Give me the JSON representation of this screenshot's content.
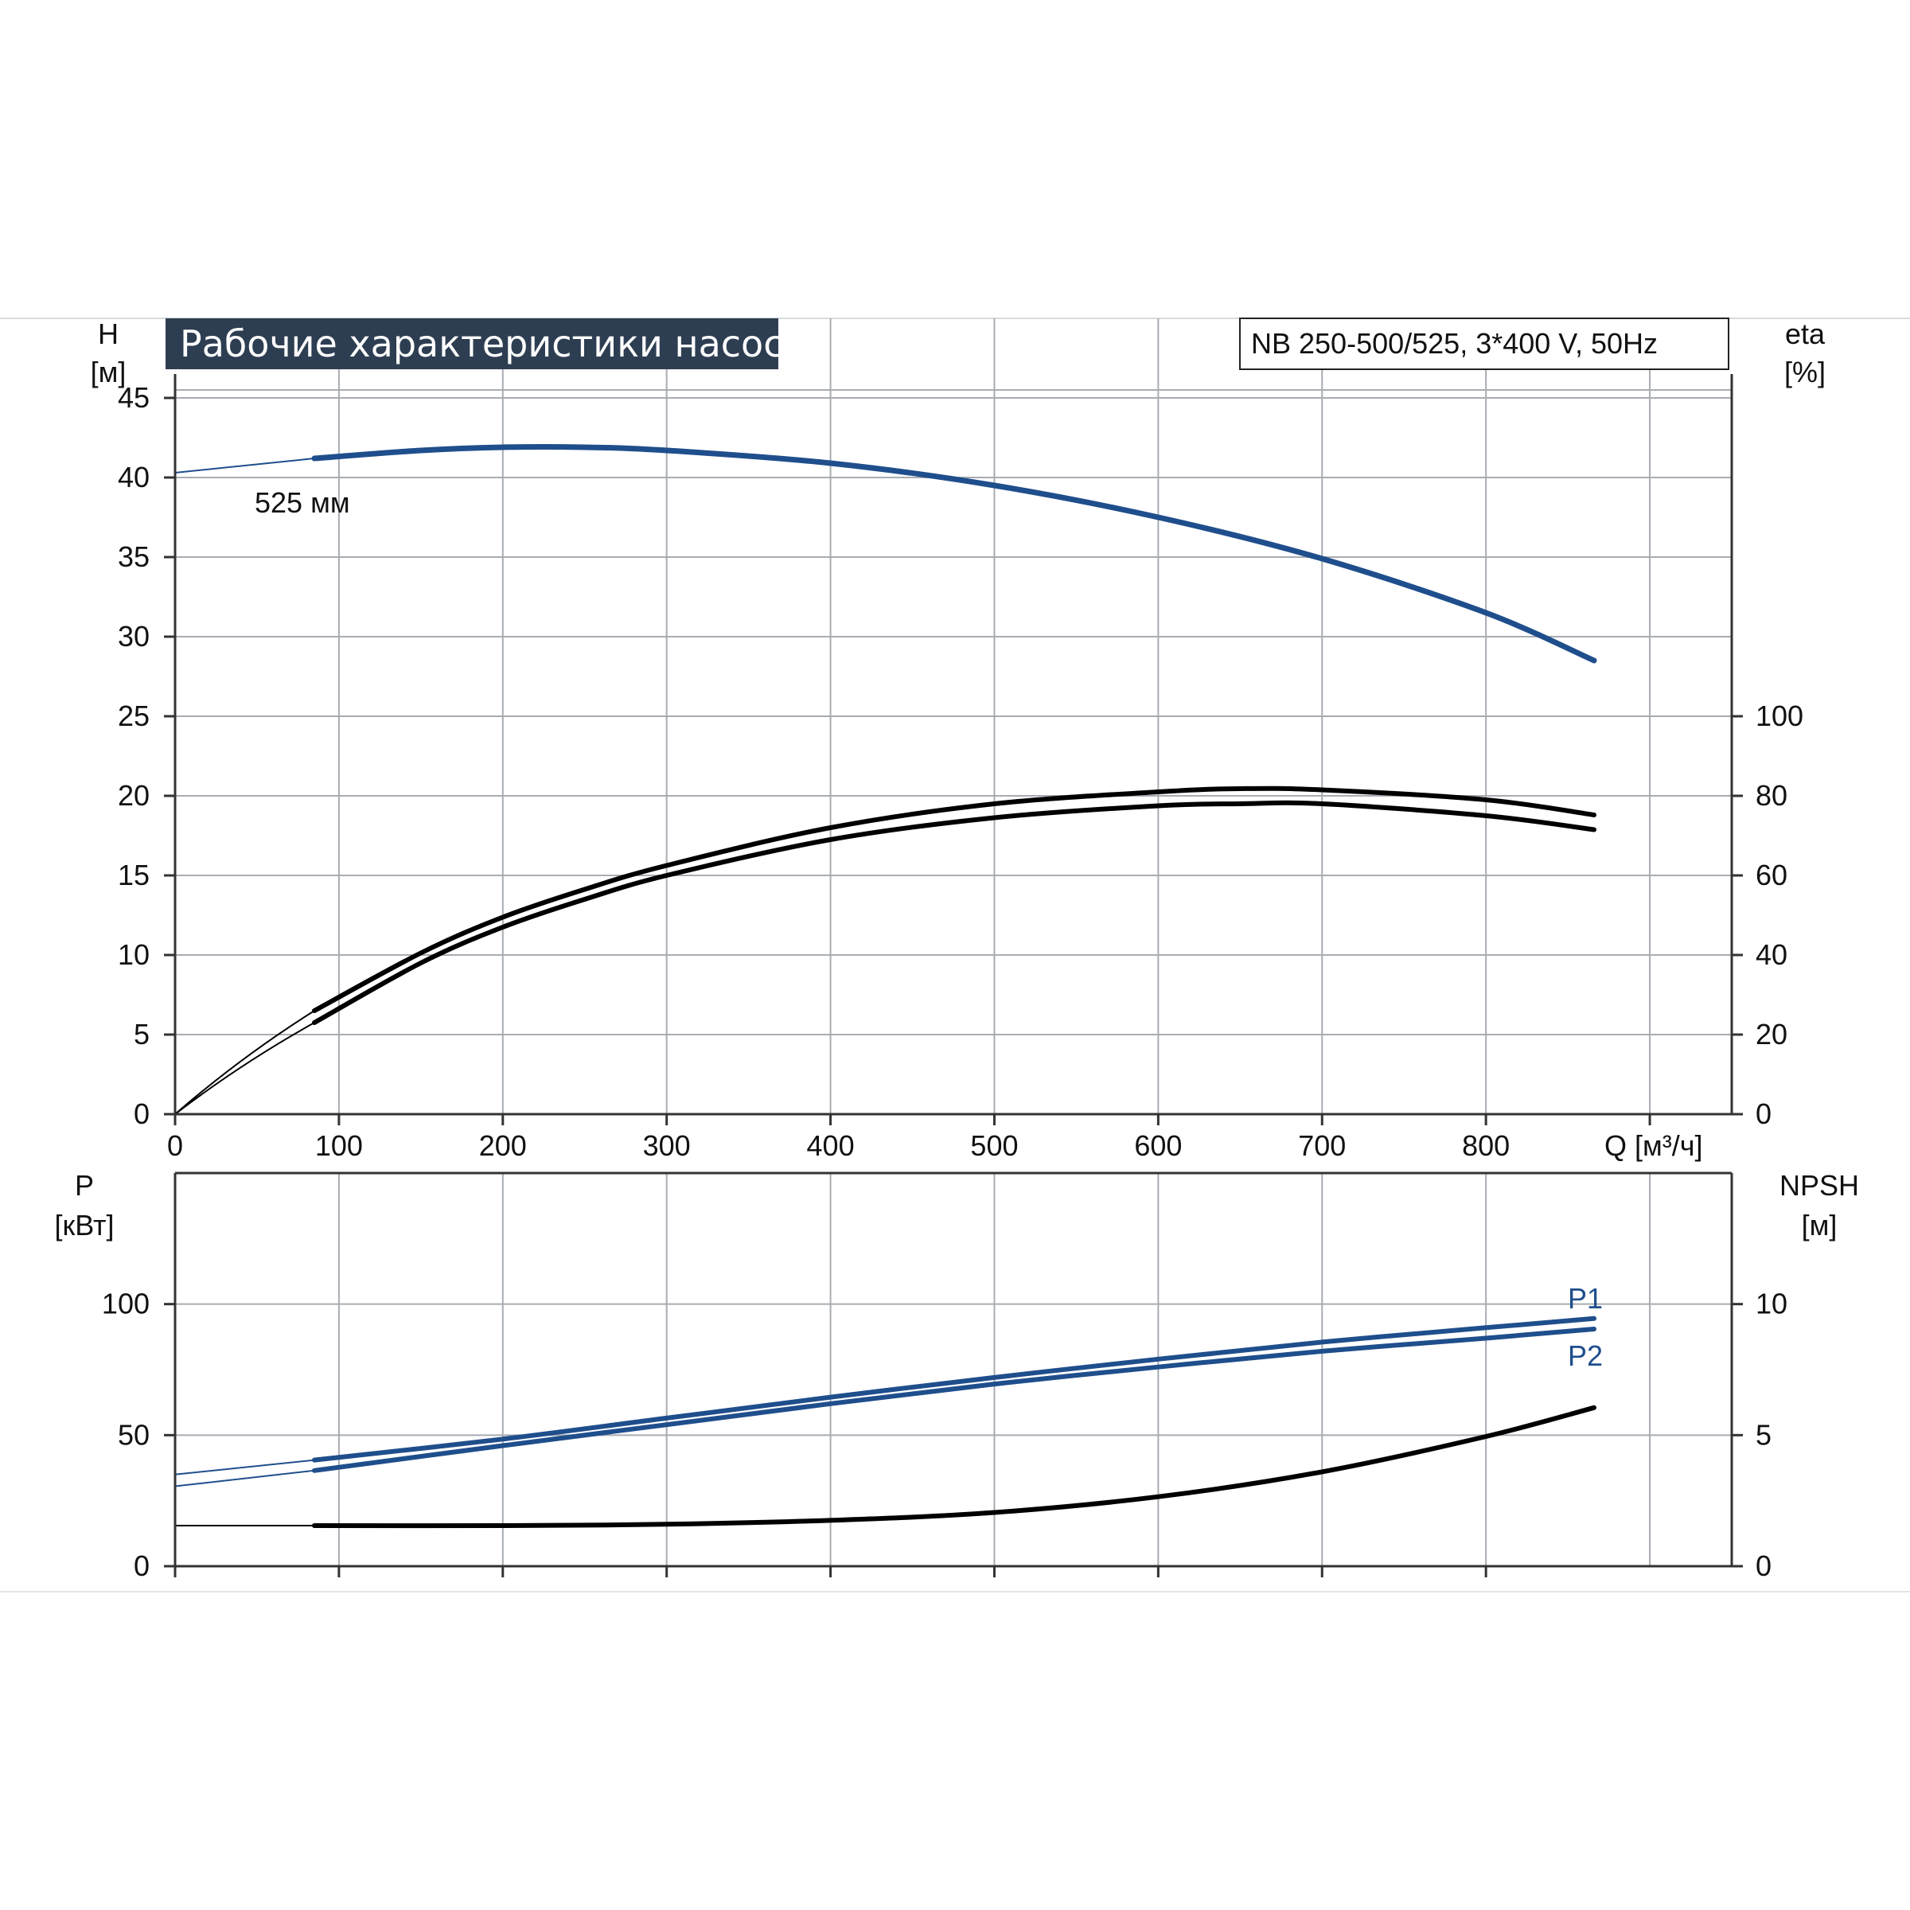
{
  "title": "Рабочие характеристики насоса",
  "model": "NB 250-500/525, 3*400 V, 50Hz",
  "colors": {
    "blue": "#1f4e8c",
    "black": "#000000",
    "grid": "#a8acb2",
    "title_bg": "#2e3e52"
  },
  "chart_data": [
    {
      "type": "line",
      "name": "head-efficiency",
      "x_unit_label": "Q [м³/ч]",
      "x_ticks": [
        0,
        100,
        200,
        300,
        400,
        500,
        600,
        700,
        800
      ],
      "xlim": [
        0,
        950
      ],
      "left_axis": {
        "label_top": "H",
        "label_unit": "[м]",
        "ylim": [
          0,
          50
        ],
        "ticks": [
          0,
          5,
          10,
          15,
          20,
          25,
          30,
          35,
          40,
          45
        ]
      },
      "right_axis": {
        "label_top": "eta",
        "label_unit": "[%]",
        "ylim": [
          0,
          200
        ],
        "ticks": [
          0,
          20,
          40,
          60,
          80,
          100
        ]
      },
      "series": [
        {
          "name": "525 мм",
          "axis": "left",
          "color": "blue",
          "x": [
            85,
            150,
            200,
            250,
            300,
            400,
            500,
            600,
            700,
            800,
            866
          ],
          "y": [
            41.2,
            41.7,
            41.9,
            41.9,
            41.7,
            40.9,
            39.5,
            37.5,
            34.9,
            31.5,
            28.5
          ]
        },
        {
          "name": "",
          "axis": "right",
          "color": "black",
          "x": [
            85,
            150,
            200,
            250,
            300,
            400,
            500,
            600,
            650,
            700,
            800,
            866
          ],
          "y": [
            23,
            38,
            47,
            54,
            60,
            69,
            74.5,
            77.5,
            78,
            78,
            75,
            71.5
          ]
        },
        {
          "name": "",
          "axis": "right",
          "color": "black",
          "x": [
            85,
            150,
            200,
            250,
            300,
            400,
            500,
            600,
            650,
            700,
            800,
            866
          ],
          "y": [
            26,
            40.5,
            49.5,
            56.5,
            62.5,
            72,
            78,
            81,
            81.8,
            81.5,
            79,
            75.2
          ]
        }
      ]
    },
    {
      "type": "line",
      "name": "power-npsh",
      "x_ticks": [
        0,
        100,
        200,
        300,
        400,
        500,
        600,
        700,
        800
      ],
      "xlim": [
        0,
        950
      ],
      "left_axis": {
        "label_top": "P",
        "label_unit": "[кВт]",
        "ylim": [
          0,
          150
        ],
        "ticks": [
          0,
          50,
          100
        ]
      },
      "right_axis": {
        "label_top": "NPSH",
        "label_unit": "[м]",
        "ylim": [
          0,
          15
        ],
        "ticks": [
          0,
          5,
          10
        ]
      },
      "series": [
        {
          "name": "P1",
          "axis": "left",
          "color": "blue",
          "x": [
            85,
            200,
            300,
            400,
            500,
            600,
            700,
            800,
            866
          ],
          "y": [
            40.5,
            48.5,
            56.5,
            64.5,
            72,
            79,
            85.5,
            91,
            94.5
          ]
        },
        {
          "name": "P2",
          "axis": "left",
          "color": "blue",
          "x": [
            85,
            200,
            300,
            400,
            500,
            600,
            700,
            800,
            866
          ],
          "y": [
            36.5,
            46,
            54,
            62,
            69.5,
            76,
            82,
            87,
            90.5
          ]
        },
        {
          "name": "",
          "axis": "right",
          "color": "black",
          "x": [
            85,
            200,
            300,
            400,
            500,
            600,
            700,
            800,
            866
          ],
          "y": [
            1.55,
            1.55,
            1.6,
            1.75,
            2.05,
            2.65,
            3.6,
            4.95,
            6.05
          ]
        }
      ]
    }
  ]
}
